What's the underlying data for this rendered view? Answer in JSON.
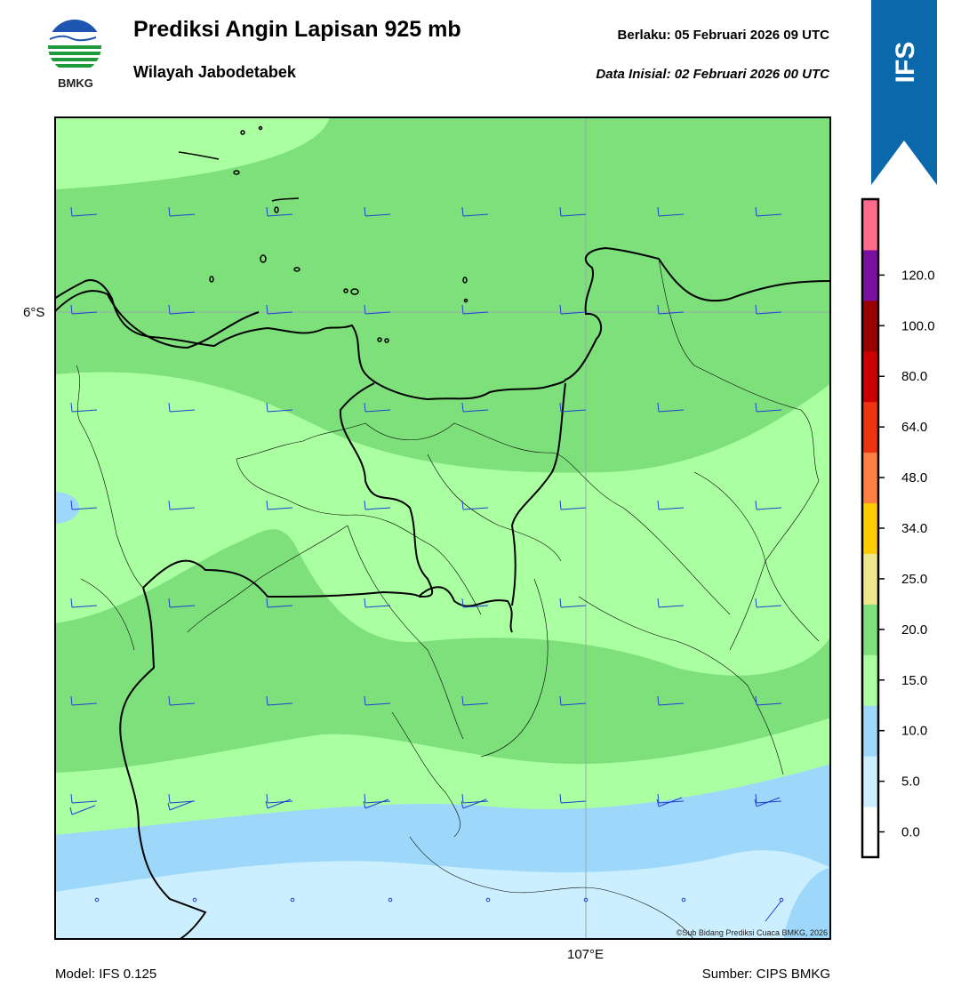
{
  "header": {
    "title": "Prediksi Angin Lapisan 925 mb",
    "subtitle": "Wilayah Jabodetabek",
    "valid_time": "Berlaku:  05 Februari 2026 09 UTC",
    "init_time": "Data Inisial:  02 Februari 2026 00 UTC",
    "logo_text": "BMKG",
    "badge_text": "IFS"
  },
  "map": {
    "lat_label": "6°S",
    "lon_label": "107°E",
    "copyright": "©Sub Bidang Prediksi Cuaca BMKG, 2026",
    "wind_color": "#1f3fd6",
    "coastline_color": "#000000"
  },
  "footer": {
    "model": "Model: IFS 0.125",
    "source": "Sumber: CIPS BMKG"
  },
  "colorbar": {
    "ticks": [
      "0.0",
      "5.0",
      "10.0",
      "15.0",
      "20.0",
      "25.0",
      "34.0",
      "48.0",
      "64.0",
      "80.0",
      "100.0",
      "120.0"
    ],
    "colors": [
      "#ffffff",
      "#ccefff",
      "#9dd8fa",
      "#aaffa0",
      "#7de07a",
      "#f0e68c",
      "#ffcc00",
      "#ff8040",
      "#ee3311",
      "#cc0000",
      "#990000",
      "#7b10a0",
      "#ff6b8a"
    ]
  }
}
